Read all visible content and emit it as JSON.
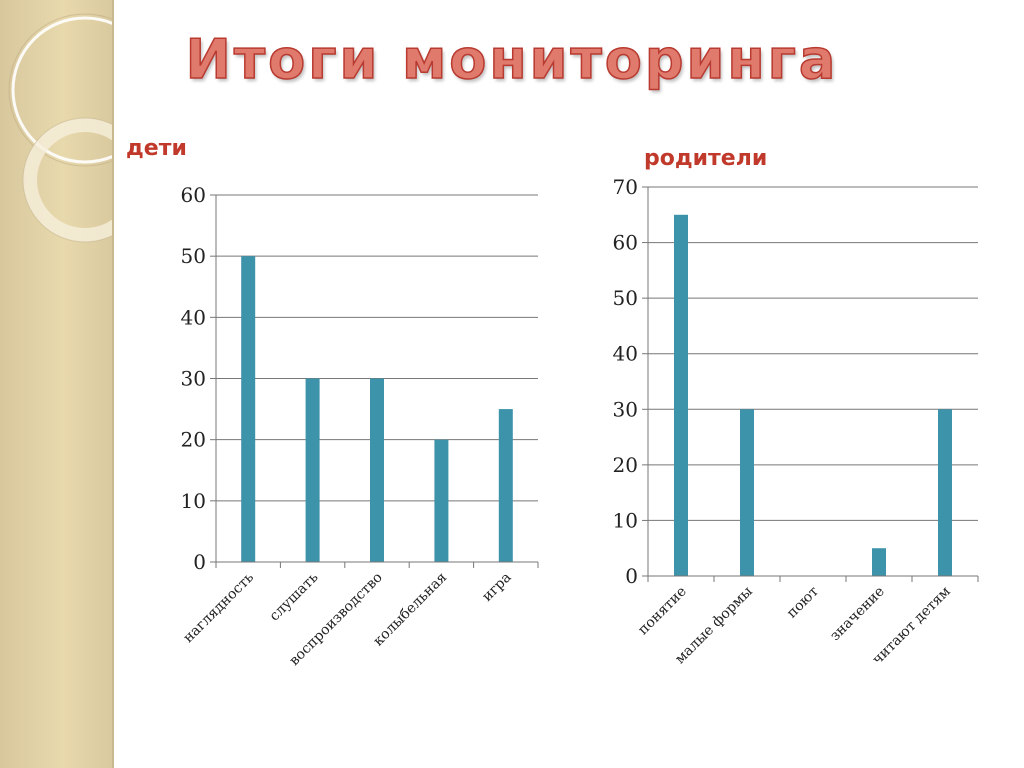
{
  "slide": {
    "title": "Итоги мониторинга"
  },
  "colors": {
    "bar": "#3d93a9",
    "title_fill": "#e07a6c",
    "title_stroke": "#b83a30",
    "label": "#c0392b",
    "sidebar": "#e3d3a6"
  },
  "chart_data": [
    {
      "type": "bar",
      "label": "дети",
      "categories": [
        "наглядность",
        "слушать",
        "воспроизводство",
        "колыбельная",
        "игра"
      ],
      "values": [
        50,
        30,
        30,
        20,
        25
      ],
      "ylim": [
        0,
        60
      ],
      "yticks": [
        0,
        10,
        20,
        30,
        40,
        50,
        60
      ],
      "grid": true,
      "legend": "none"
    },
    {
      "type": "bar",
      "label": "родители",
      "categories": [
        "понятие",
        "малые формы",
        "поют",
        "значение",
        "читают детям"
      ],
      "values": [
        65,
        30,
        0,
        5,
        30
      ],
      "ylim": [
        0,
        70
      ],
      "yticks": [
        0,
        10,
        20,
        30,
        40,
        50,
        60,
        70
      ],
      "grid": true,
      "legend": "none"
    }
  ]
}
